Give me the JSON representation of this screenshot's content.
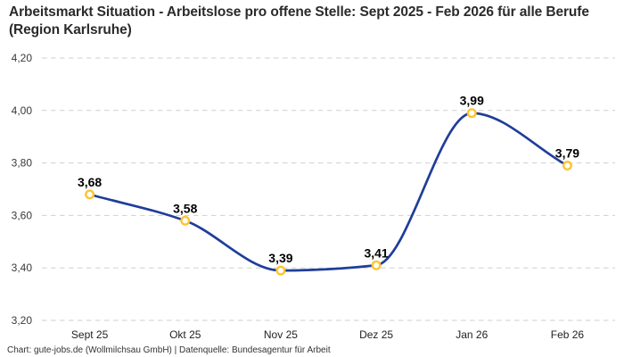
{
  "header": {
    "title": "Arbeitsmarkt Situation - Arbeitslose pro offene Stelle: Sept 2025 - Feb 2026 für alle Berufe (Region Karlsruhe)"
  },
  "footer": {
    "credit": "Chart: gute-jobs.de (Wollmilchsau GmbH) | Datenquelle: Bundesagentur für Arbeit"
  },
  "chart_data": {
    "type": "line",
    "title": "Arbeitsmarkt Situation - Arbeitslose pro offene Stelle: Sept 2025 - Feb 2026 für alle Berufe (Region Karlsruhe)",
    "categories": [
      "Sept 25",
      "Okt 25",
      "Nov 25",
      "Dez 25",
      "Jan 26",
      "Feb 26"
    ],
    "values": [
      3.68,
      3.58,
      3.39,
      3.41,
      3.99,
      3.79
    ],
    "value_labels": [
      "3,68",
      "3,58",
      "3,39",
      "3,41",
      "3,99",
      "3,79"
    ],
    "ylim": [
      3.2,
      4.2
    ],
    "y_ticks": [
      {
        "value": 4.2,
        "label": "4,20"
      },
      {
        "value": 4.0,
        "label": "4,00"
      },
      {
        "value": 3.8,
        "label": "3,80"
      },
      {
        "value": 3.6,
        "label": "3,60"
      },
      {
        "value": 3.4,
        "label": "3,40"
      },
      {
        "value": 3.2,
        "label": "3,20"
      }
    ],
    "xlabel": "",
    "ylabel": "",
    "grid": "horizontal-dashed",
    "legend": "none",
    "curve": "smooth-monotone",
    "colors": {
      "line": "#1F3D99",
      "marker": "#FFC42E",
      "marker_fill": "#FFFFFF",
      "grid": "#CFCFCF"
    }
  }
}
